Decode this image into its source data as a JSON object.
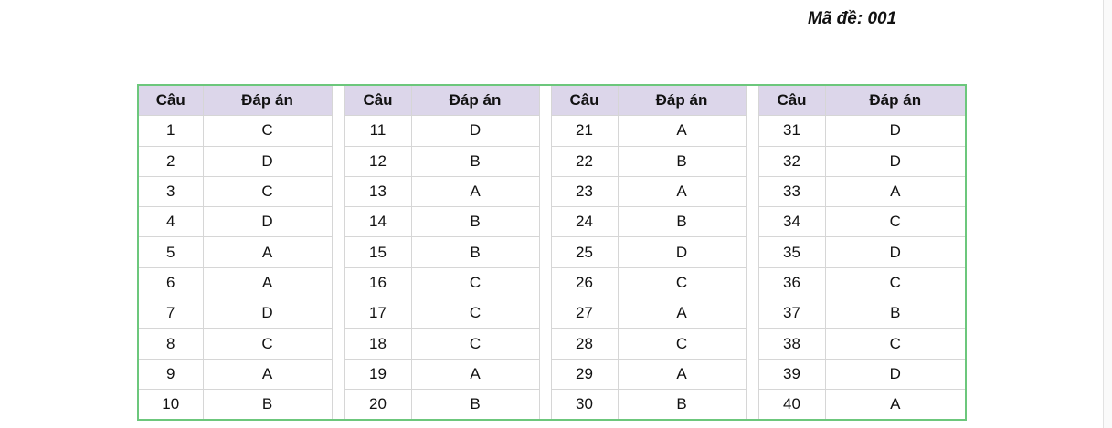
{
  "title": "Mã đề: 001",
  "headers": {
    "question": "Câu",
    "answer": "Đáp án"
  },
  "groups": [
    {
      "rows": [
        [
          "1",
          "C"
        ],
        [
          "2",
          "D"
        ],
        [
          "3",
          "C"
        ],
        [
          "4",
          "D"
        ],
        [
          "5",
          "A"
        ],
        [
          "6",
          "A"
        ],
        [
          "7",
          "D"
        ],
        [
          "8",
          "C"
        ],
        [
          "9",
          "A"
        ],
        [
          "10",
          "B"
        ]
      ]
    },
    {
      "rows": [
        [
          "11",
          "D"
        ],
        [
          "12",
          "B"
        ],
        [
          "13",
          "A"
        ],
        [
          "14",
          "B"
        ],
        [
          "15",
          "B"
        ],
        [
          "16",
          "C"
        ],
        [
          "17",
          "C"
        ],
        [
          "18",
          "C"
        ],
        [
          "19",
          "A"
        ],
        [
          "20",
          "B"
        ]
      ]
    },
    {
      "rows": [
        [
          "21",
          "A"
        ],
        [
          "22",
          "B"
        ],
        [
          "23",
          "A"
        ],
        [
          "24",
          "B"
        ],
        [
          "25",
          "D"
        ],
        [
          "26",
          "C"
        ],
        [
          "27",
          "A"
        ],
        [
          "28",
          "C"
        ],
        [
          "29",
          "A"
        ],
        [
          "30",
          "B"
        ]
      ]
    },
    {
      "rows": [
        [
          "31",
          "D"
        ],
        [
          "32",
          "D"
        ],
        [
          "33",
          "A"
        ],
        [
          "34",
          "C"
        ],
        [
          "35",
          "D"
        ],
        [
          "36",
          "C"
        ],
        [
          "37",
          "B"
        ],
        [
          "38",
          "C"
        ],
        [
          "39",
          "D"
        ],
        [
          "40",
          "A"
        ]
      ]
    }
  ],
  "colors": {
    "header_bg": "#dcd6ea",
    "table_border": "#6cc77c"
  }
}
